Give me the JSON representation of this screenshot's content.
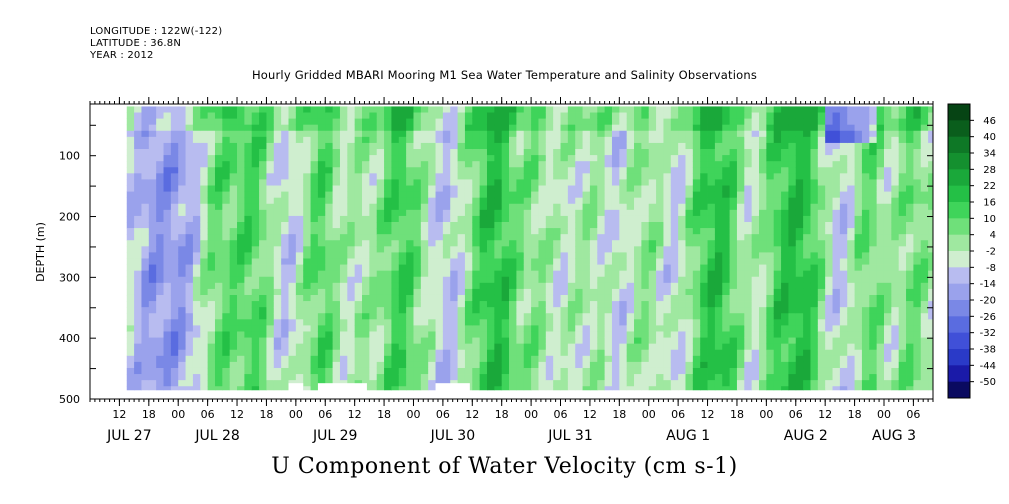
{
  "header": {
    "longitude": "LONGITUDE : 122W(-122)",
    "latitude": "LATITUDE : 36.8N",
    "year": "YEAR : 2012"
  },
  "chart_data": {
    "type": "heatmap",
    "title": "Hourly Gridded MBARI Mooring M1 Sea Water Temperature and Salinity Observations",
    "xlabel": "",
    "ylabel": "DEPTH (m)",
    "bottom_title": "U Component of Water Velocity (cm s-1)",
    "x_range_hours": [
      0,
      172
    ],
    "x_start_reference": "JUL 27 06:00 2012",
    "ylim": [
      500,
      15
    ],
    "y_ticks": [
      100,
      200,
      300,
      400,
      500
    ],
    "y_tick_labels": [
      "100",
      "200",
      "300",
      "400",
      "500"
    ],
    "hour_tick_labels": [
      {
        "h": 6,
        "label": "12"
      },
      {
        "h": 12,
        "label": "18"
      },
      {
        "h": 18,
        "label": "00"
      },
      {
        "h": 24,
        "label": "06"
      },
      {
        "h": 30,
        "label": "12"
      },
      {
        "h": 36,
        "label": "18"
      },
      {
        "h": 42,
        "label": "00"
      },
      {
        "h": 48,
        "label": "06"
      },
      {
        "h": 54,
        "label": "12"
      },
      {
        "h": 60,
        "label": "18"
      },
      {
        "h": 66,
        "label": "00"
      },
      {
        "h": 72,
        "label": "06"
      },
      {
        "h": 78,
        "label": "12"
      },
      {
        "h": 84,
        "label": "18"
      },
      {
        "h": 90,
        "label": "00"
      },
      {
        "h": 96,
        "label": "06"
      },
      {
        "h": 102,
        "label": "12"
      },
      {
        "h": 108,
        "label": "18"
      },
      {
        "h": 114,
        "label": "00"
      },
      {
        "h": 120,
        "label": "06"
      },
      {
        "h": 126,
        "label": "12"
      },
      {
        "h": 132,
        "label": "18"
      },
      {
        "h": 138,
        "label": "00"
      },
      {
        "h": 144,
        "label": "06"
      },
      {
        "h": 150,
        "label": "12"
      },
      {
        "h": 156,
        "label": "18"
      },
      {
        "h": 162,
        "label": "00"
      },
      {
        "h": 168,
        "label": "06"
      }
    ],
    "date_labels": [
      {
        "h": 6,
        "label": "JUL 27"
      },
      {
        "h": 24,
        "label": "JUL 28"
      },
      {
        "h": 48,
        "label": "JUL 29"
      },
      {
        "h": 72,
        "label": "JUL 30"
      },
      {
        "h": 96,
        "label": "JUL 31"
      },
      {
        "h": 120,
        "label": "AUG  1"
      },
      {
        "h": 144,
        "label": "AUG  2"
      },
      {
        "h": 162,
        "label": "AUG  3"
      }
    ],
    "data_extent": {
      "x": [
        7.5,
        172
      ],
      "depth": [
        19,
        485
      ]
    },
    "missing_data_hours": [
      [
        40.5,
        43.5
      ],
      [
        46.5,
        56.5
      ],
      [
        70.5,
        77.5
      ]
    ],
    "colorbar": {
      "levels": [
        "46",
        "40",
        "34",
        "28",
        "22",
        "16",
        "10",
        "4",
        "-2",
        "-8",
        "-14",
        "-20",
        "-26",
        "-32",
        "-38",
        "-44",
        "-50"
      ],
      "range": [
        -50,
        50
      ],
      "colors": [
        "#0a0a60",
        "#1a1aa8",
        "#2a3ac8",
        "#4050d8",
        "#5a6ce0",
        "#7a88e6",
        "#9aa2ec",
        "#b8bcf0",
        "#cfeecf",
        "#9fe8a0",
        "#6fe07a",
        "#3fd45a",
        "#24c046",
        "#1aa83a",
        "#14902f",
        "#0e7826",
        "#0a5e1c",
        "#064414"
      ]
    },
    "field_description": {
      "green_columns_hours": [
        25,
        34,
        47,
        55,
        62,
        68,
        78,
        84,
        90,
        98,
        104,
        112,
        124,
        130,
        140,
        146,
        158,
        166
      ],
      "blue_columns_hours": [
        13,
        21,
        40,
        52,
        58,
        70,
        75,
        88,
        95,
        102,
        109,
        120,
        135,
        154,
        164
      ]
    }
  }
}
